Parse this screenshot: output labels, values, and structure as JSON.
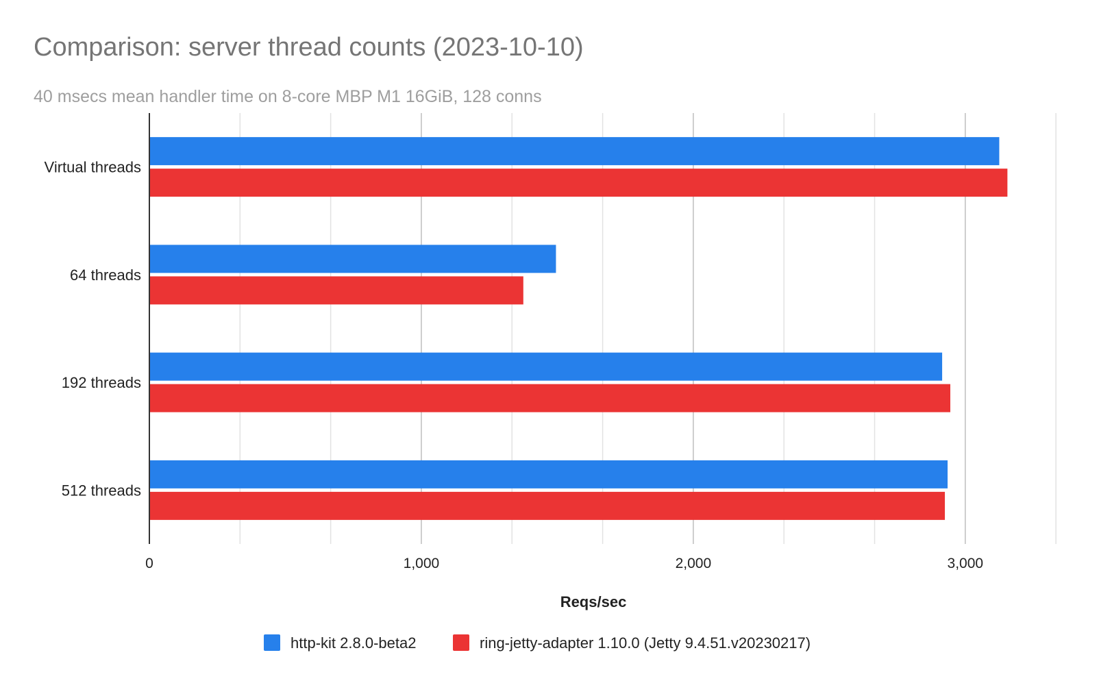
{
  "chart_data": {
    "type": "bar",
    "orientation": "horizontal",
    "title": "Comparison: server thread counts (2023-10-10)",
    "subtitle": "40 msecs mean handler time on 8-core MBP M1 16GiB, 128 conns",
    "xlabel": "Reqs/sec",
    "ylabel": "",
    "categories": [
      "Virtual threads",
      "64 threads",
      "192 threads",
      "512 threads"
    ],
    "series": [
      {
        "name": "http-kit 2.8.0-beta2",
        "color": "#2680eb",
        "values": [
          3125,
          1495,
          2915,
          2935
        ]
      },
      {
        "name": "ring-jetty-adapter 1.10.0 (Jetty 9.4.51.v20230217)",
        "color": "#eb3434",
        "values": [
          3155,
          1375,
          2945,
          2925
        ]
      }
    ],
    "xlim": [
      0,
      3333
    ],
    "x_ticks": [
      {
        "value": 0,
        "label": "0"
      },
      {
        "value": 1000,
        "label": "1,000"
      },
      {
        "value": 2000,
        "label": "2,000"
      },
      {
        "value": 3000,
        "label": "3,000"
      }
    ],
    "minor_gridlines": [
      333.33,
      666.67,
      1333.33,
      1666.67,
      2333.33,
      2666.67,
      3333.33
    ],
    "grid": true,
    "legend_position": "bottom"
  }
}
